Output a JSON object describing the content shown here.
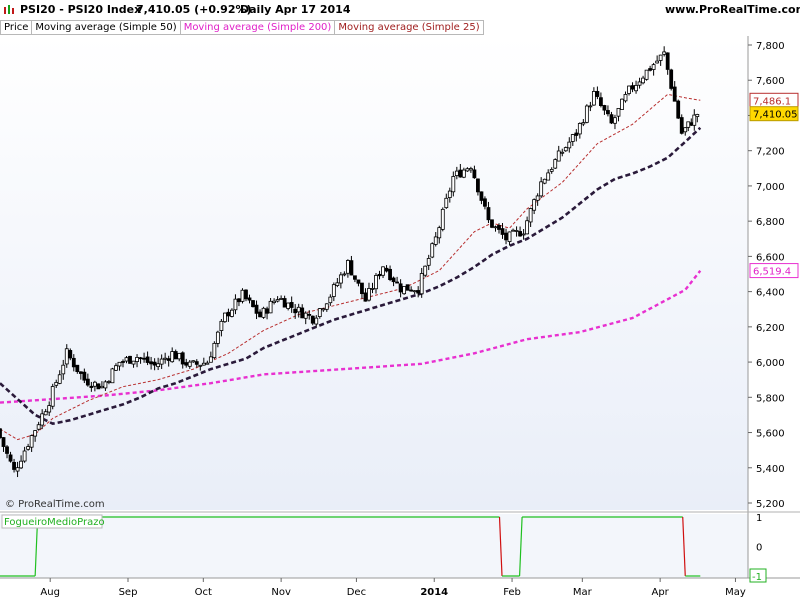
{
  "header": {
    "instrument": "PSI20 - PSI20 Index",
    "last_value": "7,410.05 (+0.92%)",
    "period_date": "Daily  Apr 17 2014",
    "site": "www.ProRealTime.com"
  },
  "legend": {
    "price": "Price",
    "ma50": "Moving average (Simple 50)",
    "ma200": "Moving average (Simple 200)",
    "ma25": "Moving average (Simple 25)"
  },
  "copyright": "© ProRealTime.com",
  "indicator_label": "FogueiroMedioPrazo",
  "colors": {
    "ma50": "#2a1a3a",
    "ma200": "#e830d0",
    "ma25": "#b83030",
    "candle": "#000000",
    "candle_up": "#ffffff",
    "candle_down": "#000000",
    "background_top": "#ffffff",
    "background_bottom": "#e9eef8",
    "indicator_up": "#20c020",
    "indicator_down": "#d01010"
  },
  "chart_data": [
    {
      "type": "line",
      "title": "",
      "y_axis_ticks": [
        "7,800",
        "7,600",
        "7,400",
        "7,200",
        "7,000",
        "6,800",
        "6,600",
        "6,400",
        "6,200",
        "6,000",
        "5,800",
        "5,600",
        "5,400",
        "5,200"
      ],
      "ylim": [
        5200,
        7800
      ],
      "x_axis_ticks": [
        "Aug",
        "Sep",
        "Oct",
        "Nov",
        "Dec",
        "2014",
        "Feb",
        "Mar",
        "Apr",
        "May"
      ],
      "price_tags": {
        "ma25": "7,486.1",
        "price": "7,410.05",
        "ma200": "6,519.4"
      },
      "series": [
        {
          "name": "Moving average (Simple 50)",
          "style": "dashed-thick",
          "x": [
            "Jul 12",
            "Jul 19",
            "Jul 26",
            "Aug 2",
            "Aug 9",
            "Aug 16",
            "Aug 23",
            "Aug 30",
            "Sep 6",
            "Sep 13",
            "Sep 20",
            "Sep 27",
            "Oct 4",
            "Oct 11",
            "Oct 18",
            "Oct 25",
            "Nov 1",
            "Nov 8",
            "Nov 15",
            "Nov 22",
            "Nov 29",
            "Dec 6",
            "Dec 13",
            "Dec 20",
            "Dec 27",
            "Jan 3",
            "Jan 10",
            "Jan 17",
            "Jan 24",
            "Jan 31",
            "Feb 7",
            "Feb 14",
            "Feb 21",
            "Feb 28",
            "Mar 7",
            "Mar 14",
            "Mar 21",
            "Mar 28",
            "Apr 4",
            "Apr 11",
            "Apr 17"
          ],
          "values": [
            5880,
            5790,
            5700,
            5650,
            5670,
            5700,
            5730,
            5760,
            5800,
            5850,
            5880,
            5920,
            5960,
            5990,
            6020,
            6080,
            6120,
            6160,
            6200,
            6240,
            6270,
            6300,
            6330,
            6360,
            6390,
            6430,
            6480,
            6540,
            6610,
            6660,
            6700,
            6760,
            6820,
            6900,
            6980,
            7040,
            7070,
            7110,
            7160,
            7250,
            7330
          ]
        },
        {
          "name": "Moving average (Simple 200)",
          "style": "dashed",
          "x": [
            "Jul 12",
            "Aug 2",
            "Aug 23",
            "Sep 13",
            "Oct 4",
            "Oct 25",
            "Nov 15",
            "Dec 6",
            "Dec 27",
            "Jan 17",
            "Feb 7",
            "Feb 28",
            "Mar 21",
            "Apr 11",
            "Apr 17"
          ],
          "values": [
            5770,
            5790,
            5810,
            5840,
            5880,
            5930,
            5950,
            5970,
            5990,
            6050,
            6130,
            6170,
            6250,
            6410,
            6519
          ]
        },
        {
          "name": "Moving average (Simple 25)",
          "style": "dashed-thin",
          "x": [
            "Jul 12",
            "Jul 19",
            "Jul 26",
            "Aug 2",
            "Aug 16",
            "Aug 30",
            "Sep 13",
            "Sep 27",
            "Oct 11",
            "Oct 25",
            "Nov 8",
            "Nov 22",
            "Dec 6",
            "Dec 20",
            "Jan 3",
            "Jan 17",
            "Jan 24",
            "Jan 31",
            "Feb 7",
            "Feb 21",
            "Mar 7",
            "Mar 21",
            "Apr 4",
            "Apr 11",
            "Apr 17"
          ],
          "values": [
            5620,
            5560,
            5590,
            5680,
            5780,
            5860,
            5900,
            5960,
            6050,
            6180,
            6270,
            6320,
            6370,
            6420,
            6520,
            6740,
            6790,
            6760,
            6870,
            7020,
            7240,
            7350,
            7520,
            7500,
            7486
          ]
        },
        {
          "name": "Price",
          "style": "candles",
          "x": [
            "Jul 12",
            "Jul 19",
            "Jul 26",
            "Aug 2",
            "Aug 9",
            "Aug 16",
            "Aug 23",
            "Aug 30",
            "Sep 6",
            "Sep 13",
            "Sep 20",
            "Sep 27",
            "Oct 4",
            "Oct 11",
            "Oct 18",
            "Oct 25",
            "Nov 1",
            "Nov 8",
            "Nov 15",
            "Nov 22",
            "Nov 29",
            "Dec 6",
            "Dec 13",
            "Dec 20",
            "Dec 27",
            "Jan 3",
            "Jan 10",
            "Jan 17",
            "Jan 24",
            "Jan 31",
            "Feb 7",
            "Feb 14",
            "Feb 21",
            "Feb 28",
            "Mar 7",
            "Mar 14",
            "Mar 21",
            "Mar 28",
            "Apr 4",
            "Apr 11",
            "Apr 17"
          ],
          "values": [
            5620,
            5380,
            5580,
            5780,
            6050,
            5900,
            5860,
            6000,
            6030,
            5980,
            6050,
            5980,
            6000,
            6260,
            6380,
            6260,
            6370,
            6300,
            6250,
            6380,
            6560,
            6350,
            6550,
            6420,
            6420,
            6700,
            7050,
            7120,
            6800,
            6700,
            6750,
            7020,
            7170,
            7300,
            7520,
            7350,
            7540,
            7650,
            7750,
            7300,
            7410
          ]
        }
      ]
    },
    {
      "type": "line",
      "title": "",
      "series_name": "FogueiroMedioPrazo",
      "y_axis_ticks": [
        "1",
        "0",
        "-1"
      ],
      "ylim": [
        -1,
        1
      ],
      "last_value_tag": "-1",
      "x": [
        "Jul 12",
        "Jul 26",
        "Jul 27",
        "Aug 2",
        "Jan 27",
        "Jan 28",
        "Feb 4",
        "Feb 5",
        "Apr 10",
        "Apr 11",
        "Apr 17"
      ],
      "values": [
        -1,
        -1,
        1,
        1,
        1,
        -1,
        -1,
        1,
        1,
        -1,
        -1
      ]
    }
  ]
}
